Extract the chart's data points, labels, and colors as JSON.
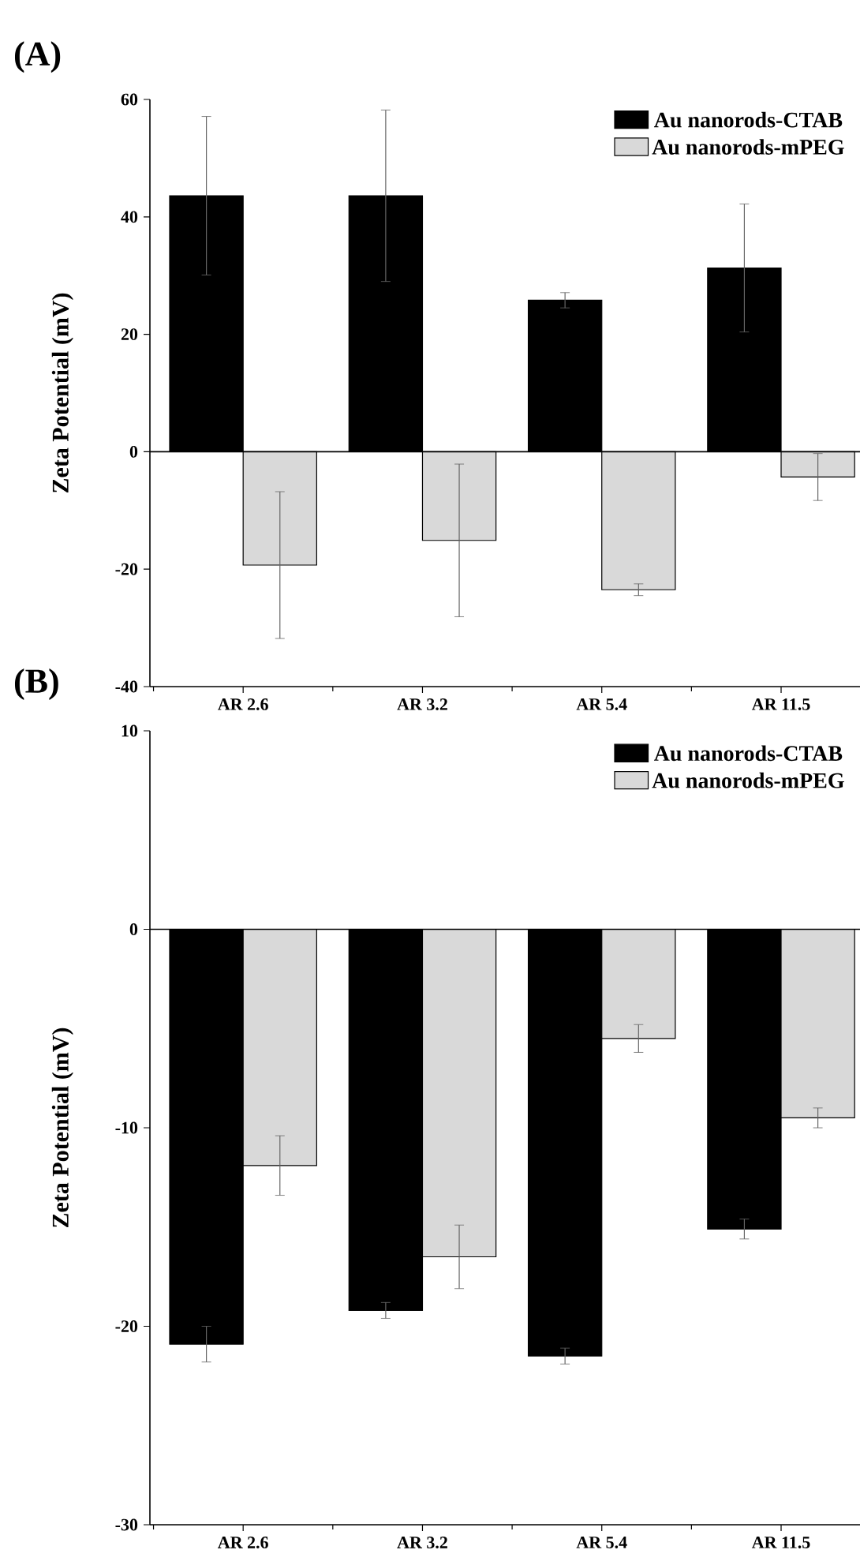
{
  "chart_data": [
    {
      "type": "bar",
      "title": "(A)",
      "ylabel": "Zeta Potential (mV)",
      "categories": [
        "AR 2.6",
        "AR 3.2",
        "AR 5.4",
        "AR 11.5"
      ],
      "ylim": [
        -40,
        60
      ],
      "yticks": [
        -40,
        -20,
        0,
        20,
        40,
        60
      ],
      "legend": "top right",
      "ref_lines": [
        {
          "axis": "y",
          "value": 0,
          "color": "#000000"
        }
      ],
      "series": [
        {
          "name": "Au nanorods-CTAB",
          "color": "#000000",
          "values": [
            43.6,
            43.6,
            25.8,
            31.3
          ],
          "errors": [
            13.5,
            14.6,
            1.3,
            10.9
          ]
        },
        {
          "name": "Au nanorods-mPEG",
          "color": "#d9d9d9",
          "values": [
            -19.3,
            -15.1,
            -23.5,
            -4.3
          ],
          "errors": [
            12.5,
            13,
            1,
            4
          ]
        }
      ]
    },
    {
      "type": "bar",
      "title": "(B)",
      "ylabel": "Zeta Potential (mV)",
      "categories": [
        "AR 2.6",
        "AR 3.2",
        "AR 5.4",
        "AR 11.5"
      ],
      "ylim": [
        -30,
        10
      ],
      "yticks": [
        -30,
        -20,
        -10,
        0,
        10
      ],
      "legend": "top right",
      "ref_lines": [
        {
          "axis": "y",
          "value": 0,
          "color": "#000000"
        }
      ],
      "series": [
        {
          "name": "Au nanorods-CTAB",
          "color": "#000000",
          "values": [
            -20.9,
            -19.2,
            -21.5,
            -15.1
          ],
          "errors": [
            0.9,
            0.4,
            0.4,
            0.5
          ]
        },
        {
          "name": "Au nanorods-mPEG",
          "color": "#d9d9d9",
          "values": [
            -11.9,
            -16.5,
            -5.5,
            -9.5
          ],
          "errors": [
            1.5,
            1.6,
            0.7,
            0.5
          ]
        }
      ]
    }
  ]
}
